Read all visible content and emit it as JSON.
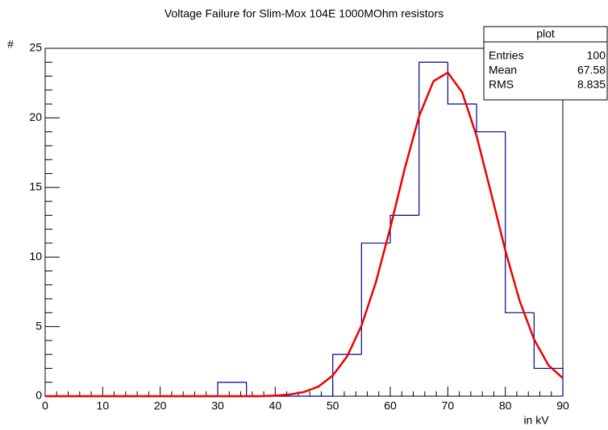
{
  "chart_data": {
    "type": "histogram",
    "title": "Voltage Failure for Slim-Mox 104E 1000MOhm resistors",
    "x_label": "in kV",
    "y_label": "#",
    "bins": [
      0,
      5,
      10,
      15,
      20,
      25,
      30,
      35,
      40,
      45,
      50,
      55,
      60,
      65,
      70,
      75,
      80,
      85,
      90
    ],
    "values": [
      0,
      0,
      0,
      0,
      0,
      0,
      1,
      0,
      0,
      0,
      3,
      11,
      13,
      24,
      21,
      19,
      6,
      2
    ],
    "color": "#000099",
    "fit": {
      "color": "#ee0000",
      "x": [
        0,
        37.5,
        40,
        42.5,
        45,
        47.5,
        50,
        52.5,
        55,
        57.5,
        60,
        62.5,
        65,
        67.5,
        70,
        72.5,
        75,
        77.5,
        80,
        82.5,
        85,
        87.5,
        90
      ],
      "values": [
        0,
        0,
        0.04,
        0.12,
        0.3,
        0.69,
        1.48,
        2.86,
        5.07,
        8.19,
        12.1,
        16.33,
        20.11,
        22.63,
        23.26,
        21.83,
        18.71,
        14.64,
        10.47,
        6.84,
        4.08,
        2.22,
        1.3
      ]
    },
    "xlim": [
      0,
      90
    ],
    "xticks": [
      0,
      10,
      20,
      30,
      40,
      50,
      60,
      70,
      80,
      90
    ],
    "ylim": [
      0,
      25
    ],
    "yticks": [
      0,
      5,
      10,
      15,
      20,
      25
    ],
    "stats": {
      "title": "plot",
      "rows": [
        [
          "Entries",
          "100"
        ],
        [
          "Mean",
          "67.58"
        ],
        [
          "RMS",
          "8.835"
        ]
      ]
    }
  }
}
